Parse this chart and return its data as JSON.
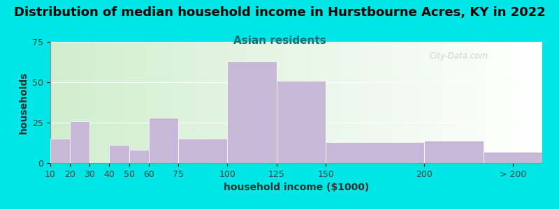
{
  "title": "Distribution of median household income in Hurstbourne Acres, KY in 2022",
  "subtitle": "Asian residents",
  "xlabel": "household income ($1000)",
  "ylabel": "households",
  "title_fontsize": 13,
  "subtitle_fontsize": 11,
  "label_fontsize": 10,
  "tick_fontsize": 9,
  "bar_color": "#c8b8d8",
  "background_outer": "#00e5e5",
  "background_inner_left": "#d0edce",
  "background_inner_right": "#ffffff",
  "ylim": [
    0,
    75
  ],
  "yticks": [
    0,
    25,
    50,
    75
  ],
  "tick_positions": [
    10,
    20,
    30,
    40,
    50,
    60,
    75,
    100,
    125,
    150,
    200,
    230,
    260
  ],
  "xtick_display_positions": [
    10,
    20,
    30,
    40,
    50,
    60,
    75,
    100,
    125,
    150,
    200,
    245
  ],
  "xtick_labels": [
    "10",
    "20",
    "30",
    "40",
    "50",
    "60",
    "75",
    "100",
    "125",
    "150",
    "200",
    "> 200"
  ],
  "bar_heights": [
    15,
    26,
    0,
    11,
    8,
    28,
    15,
    63,
    51,
    13,
    14,
    7
  ],
  "watermark": "City-Data.com"
}
